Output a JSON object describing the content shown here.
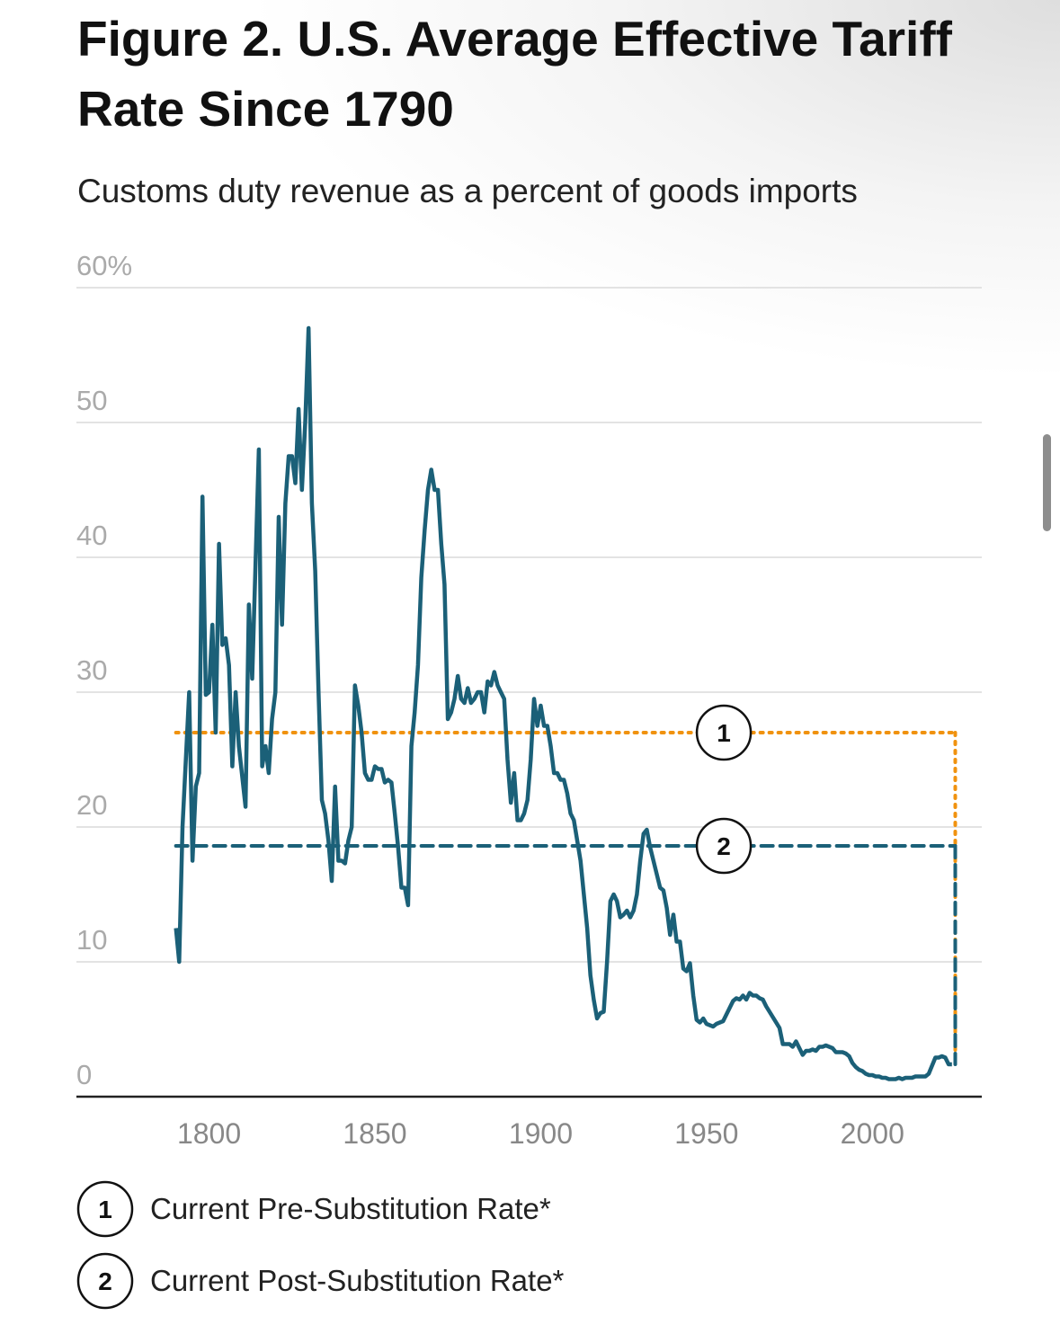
{
  "chart_data": {
    "type": "line",
    "title": "Figure 2. U.S. Average Effective Tariff Rate Since 1790",
    "subtitle": "Customs duty revenue as a percent of goods imports",
    "color": "#1b6078",
    "x": [
      1790,
      1791,
      1792,
      1794,
      1795,
      1796,
      1797,
      1798,
      1799,
      1800,
      1801,
      1802,
      1803,
      1804,
      1805,
      1806,
      1807,
      1808,
      1809,
      1811,
      1812,
      1813,
      1815,
      1816,
      1817,
      1818,
      1819,
      1820,
      1821,
      1822,
      1823,
      1824,
      1825,
      1826,
      1827,
      1828,
      1829,
      1830,
      1831,
      1832,
      1833,
      1834,
      1835,
      1836,
      1837,
      1838,
      1839,
      1840,
      1841,
      1842,
      1843,
      1844,
      1845,
      1846,
      1847,
      1848,
      1849,
      1850,
      1851,
      1852,
      1853,
      1854,
      1855,
      1856,
      1857,
      1858,
      1859,
      1860,
      1861,
      1862,
      1863,
      1864,
      1865,
      1866,
      1867,
      1868,
      1869,
      1870,
      1871,
      1872,
      1873,
      1874,
      1875,
      1876,
      1877,
      1878,
      1879,
      1880,
      1881,
      1882,
      1883,
      1884,
      1885,
      1886,
      1887,
      1888,
      1889,
      1890,
      1891,
      1892,
      1893,
      1894,
      1895,
      1896,
      1897,
      1898,
      1899,
      1900,
      1901,
      1902,
      1903,
      1904,
      1905,
      1906,
      1907,
      1908,
      1909,
      1910,
      1911,
      1912,
      1913,
      1914,
      1915,
      1916,
      1917,
      1918,
      1919,
      1920,
      1921,
      1922,
      1923,
      1924,
      1925,
      1926,
      1927,
      1928,
      1929,
      1930,
      1931,
      1932,
      1933,
      1934,
      1935,
      1936,
      1937,
      1938,
      1939,
      1940,
      1941,
      1942,
      1943,
      1944,
      1945,
      1946,
      1947,
      1948,
      1949,
      1950,
      1951,
      1952,
      1953,
      1954,
      1955,
      1956,
      1957,
      1958,
      1959,
      1960,
      1961,
      1962,
      1963,
      1964,
      1965,
      1966,
      1967,
      1968,
      1969,
      1970,
      1971,
      1972,
      1973,
      1974,
      1975,
      1976,
      1977,
      1978,
      1979,
      1980,
      1981,
      1982,
      1983,
      1984,
      1985,
      1986,
      1987,
      1988,
      1989,
      1990,
      1991,
      1992,
      1993,
      1994,
      1995,
      1996,
      1997,
      1998,
      1999,
      2000,
      2001,
      2002,
      2003,
      2004,
      2005,
      2006,
      2007,
      2008,
      2009,
      2010,
      2011,
      2012,
      2013,
      2014,
      2015,
      2016,
      2017,
      2018,
      2019,
      2020,
      2021,
      2022,
      2023,
      2024
    ],
    "values": [
      12.5,
      10,
      20,
      30,
      17.5,
      23,
      24,
      44.5,
      29.8,
      30,
      35,
      27,
      41,
      33.5,
      34,
      32,
      24.5,
      30,
      26,
      21.5,
      36.5,
      31,
      48,
      24.5,
      26,
      24,
      28,
      30,
      43,
      35,
      44,
      47.5,
      47.5,
      45.5,
      51,
      45,
      50,
      57,
      44,
      39,
      30,
      22,
      21,
      19,
      16,
      23,
      17.5,
      17.5,
      17.3,
      19,
      20,
      30.5,
      29,
      27,
      24,
      23.5,
      23.5,
      24.5,
      24.3,
      24.3,
      23.3,
      23.5,
      23.3,
      21,
      18.5,
      15.5,
      15.5,
      14.2,
      26,
      28.5,
      32,
      38.5,
      42,
      45,
      46.5,
      45,
      45,
      41,
      38,
      28,
      28.5,
      29.5,
      31.2,
      29.5,
      29.2,
      30.3,
      29.2,
      29.5,
      30,
      30,
      28.5,
      30.8,
      30.5,
      31.5,
      30.5,
      30,
      29.5,
      25,
      21.8,
      24,
      20.5,
      20.5,
      21,
      22,
      25,
      29.5,
      27.5,
      29,
      27.5,
      27.5,
      26,
      24,
      24,
      23.5,
      23.5,
      22.5,
      21,
      20.5,
      19,
      17.5,
      15,
      12.5,
      9,
      7.2,
      5.8,
      6.2,
      6.3,
      10,
      14.5,
      15,
      14.5,
      13.3,
      13.5,
      13.8,
      13.3,
      13.8,
      15,
      17.5,
      19.5,
      19.8,
      18.5,
      17.5,
      16.5,
      15.5,
      15.3,
      14,
      12,
      13.5,
      11.5,
      11.5,
      9.5,
      9.3,
      9.9,
      7.5,
      5.7,
      5.5,
      5.8,
      5.4,
      5.3,
      5.2,
      5.4,
      5.5,
      5.6,
      6.1,
      6.6,
      7.1,
      7.3,
      7.2,
      7.5,
      7.2,
      7.7,
      7.5,
      7.5,
      7.3,
      7.2,
      6.7,
      6.3,
      5.9,
      5.5,
      5.1,
      3.9,
      3.9,
      3.9,
      3.7,
      4.1,
      3.6,
      3.1,
      3.4,
      3.4,
      3.5,
      3.4,
      3.7,
      3.7,
      3.8,
      3.7,
      3.6,
      3.3,
      3.3,
      3.3,
      3.2,
      3.0,
      2.5,
      2.2,
      2.0,
      1.9,
      1.7,
      1.6,
      1.6,
      1.5,
      1.5,
      1.4,
      1.4,
      1.3,
      1.3,
      1.3,
      1.4,
      1.3,
      1.4,
      1.4,
      1.4,
      1.5,
      1.5,
      1.5,
      1.5,
      1.7,
      2.3,
      2.9,
      2.9,
      3.0,
      2.9,
      2.4,
      2.4
    ],
    "xlim": [
      1760,
      2033
    ],
    "xticks": [
      1800,
      1850,
      1900,
      1950,
      2000
    ],
    "ylim": [
      0,
      60
    ],
    "yticks": [
      0,
      10,
      20,
      30,
      40,
      50,
      {
        "value": 60,
        "label": "60%"
      }
    ],
    "grid": true,
    "reference_lines": [
      {
        "label": "1",
        "value": 27,
        "color": "#f0920f",
        "style": "dotted",
        "start": 1790,
        "end": 2025,
        "text": "Current Pre-Substitution Rate*"
      },
      {
        "label": "2",
        "value": 18.6,
        "color": "#1b6078",
        "style": "dashed",
        "start": 1790,
        "end": 2025,
        "text": "Current Post-Substitution Rate*"
      }
    ]
  }
}
